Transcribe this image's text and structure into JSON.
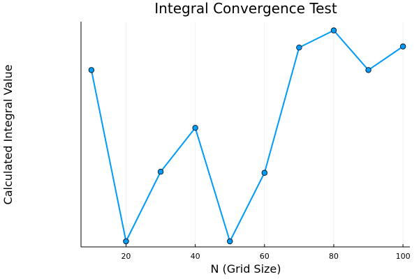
{
  "chart_data": {
    "type": "line",
    "title": "Integral Convergence Test",
    "xlabel": "N (Grid Size)",
    "ylabel": "Calculated Integral Value",
    "x_ticks": [
      20,
      40,
      60,
      80,
      100
    ],
    "xlim": [
      7,
      102
    ],
    "ylim": [
      0,
      1
    ],
    "grid": true,
    "legend": "none",
    "y_tick_labels_shown": false,
    "series": [
      {
        "x": [
          10,
          20,
          30,
          40,
          50,
          60,
          70,
          80,
          90,
          100
        ],
        "y": [
          0.8,
          0.0,
          0.325,
          0.53,
          0.0,
          0.32,
          0.905,
          0.985,
          0.8,
          0.91
        ],
        "color": "#009af9"
      }
    ]
  }
}
